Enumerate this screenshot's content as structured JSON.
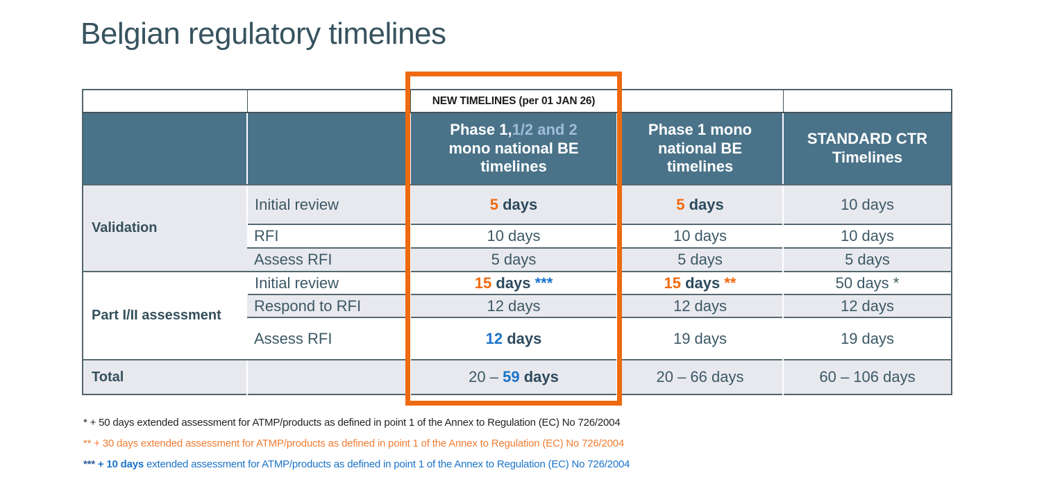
{
  "title": "Belgian regulatory timelines",
  "banner": "NEW TIMELINES (per 01 JAN 26)",
  "headers": {
    "phase12": {
      "white": "Phase 1,",
      "light": "1/2 and 2",
      "rest": "mono national BE timelines"
    },
    "phase1": "Phase 1 mono national BE timelines",
    "standard": "STANDARD CTR Timelines"
  },
  "groups": {
    "validation": "Validation",
    "part": "Part I/II assessment",
    "total": "Total"
  },
  "steps": {
    "val_initial": "Initial review",
    "val_rfi": "RFI",
    "val_assess": "Assess RFI",
    "part_initial": "Initial review",
    "part_respond": "Respond to RFI",
    "part_assess": "Assess RFI"
  },
  "cells": {
    "val_initial": {
      "p12_num": "5",
      "p12_unit": " days",
      "p1_num": "5",
      "p1_unit": " days",
      "std": "10 days"
    },
    "val_rfi": {
      "p12": "10 days",
      "p1": "10 days",
      "std": "10 days"
    },
    "val_assess": {
      "p12": "5 days",
      "p1": "5 days",
      "std": "5 days"
    },
    "part_initial": {
      "p12_num": "15",
      "p12_unit": " days ",
      "p12_note": "***",
      "p1_num": "15",
      "p1_unit": " days ",
      "p1_note": "**",
      "std": "50 days *"
    },
    "part_respond": {
      "p12": "12 days",
      "p1": "12 days",
      "std": "12 days"
    },
    "part_assess": {
      "p12_num": "12",
      "p12_unit": " days",
      "p1": "19 days",
      "std": "19 days"
    },
    "total": {
      "p12_pre": "20 – ",
      "p12_num": "59",
      "p12_unit": " days",
      "p1": "20 – 66 days",
      "std": "60 – 106 days"
    }
  },
  "footnotes": [
    {
      "text": "* + 50 days extended assessment for ATMP/products as defined in point 1 of the Annex to Regulation (EC) No 726/2004",
      "color": "#1f1f1f"
    },
    {
      "text": "** + 30 days extended assessment for ATMP/products as defined in point 1 of the Annex to Regulation (EC) No 726/2004",
      "color": "#ef7d33"
    },
    {
      "stars": "*** ",
      "bold": "+ 10 days",
      "rest": " extended assessment for ATMP/products as defined in point 1 of the Annex to Regulation (EC) No 726/2004",
      "color": "#1a73c9"
    }
  ],
  "colors": {
    "title_text": "#37535f",
    "header_bg": "#4a7389",
    "header_light_text": "#9fbcd8",
    "row_alt_bg": "#e8e9ee",
    "body_text": "#3c5866",
    "accent_orange": "#f2690f",
    "accent_blue": "#1a73c9",
    "highlight_border": "#ee6a10"
  }
}
